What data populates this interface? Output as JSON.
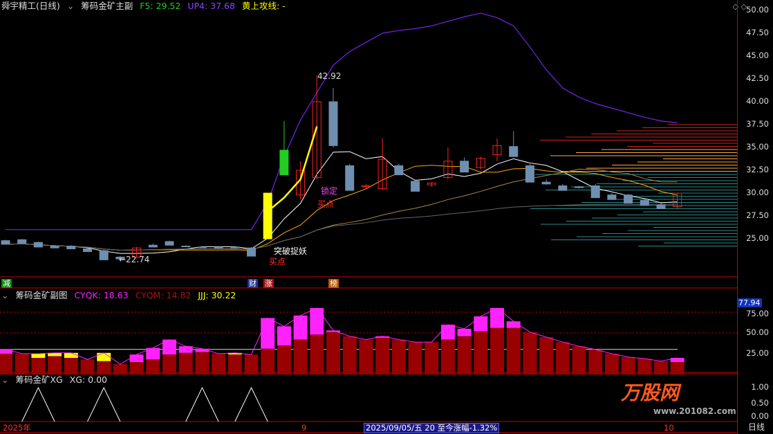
{
  "main_header": {
    "app": "舜宇精工(日线)",
    "indicator": "筹码金矿主副",
    "f5": "F5: 29.52",
    "up4": "UP4: 37.68",
    "huang": "黄上攻线: -"
  },
  "main_axis": [
    "50.00",
    "47.50",
    "45.00",
    "42.50",
    "40.00",
    "37.50",
    "35.00",
    "32.50",
    "30.00",
    "27.50",
    "25.00"
  ],
  "annotations": {
    "high": "42.92",
    "low": "←22.74",
    "breakout": "突破捉妖",
    "buy1": "买点",
    "buy2": "买点",
    "lock": "锁定"
  },
  "event_tags": [
    "减",
    "财",
    "涨",
    "榜"
  ],
  "sub_header": {
    "title": "筹码金矿副图",
    "cyqk": "CYQK: 18.63",
    "cyqm": "CYQM: 14.82",
    "jjj": "JJJ: 30.22"
  },
  "sub_axis": {
    "current": "77.94",
    "ticks": [
      "75.00",
      "50.00",
      "25.00"
    ]
  },
  "xg_header": {
    "title": "筹码金矿XG",
    "xg": "XG: 0.00"
  },
  "xg_axis": [
    "1.00",
    "0.50",
    "0.00"
  ],
  "bottom": {
    "year": "2025年",
    "month9": "9",
    "status": "2025/09/05/五 20 至今涨幅-1.32%",
    "month10": "10",
    "period": "日线"
  },
  "watermark": {
    "logo": "万股网",
    "url": "www.201082.com"
  },
  "colors": {
    "up": "#ff2020",
    "down": "#6f8fb0",
    "limit": "#ffff00",
    "green": "#22cc22",
    "cyqk": "#ff22ff",
    "cyqm": "#990000",
    "jjj": "#ffff00",
    "grid": "#cc0000"
  },
  "candles": [
    [
      24.8,
      24.9,
      24.4,
      24.4
    ],
    [
      24.9,
      25.0,
      24.5,
      24.5
    ],
    [
      24.6,
      24.7,
      24.1,
      24.1
    ],
    [
      24.2,
      24.3,
      24.0,
      24.0
    ],
    [
      24.2,
      24.3,
      23.9,
      23.9
    ],
    [
      23.9,
      24.0,
      23.6,
      23.6
    ],
    [
      23.7,
      23.8,
      22.7,
      22.7
    ],
    [
      23.0,
      23.1,
      22.74,
      22.8
    ],
    [
      23.0,
      24.1,
      22.9,
      24.0
    ],
    [
      24.3,
      24.5,
      24.1,
      24.1
    ],
    [
      24.7,
      24.8,
      24.3,
      24.3
    ],
    [
      24.2,
      24.3,
      24.1,
      24.2
    ],
    [
      24.1,
      24.2,
      24.0,
      24.1
    ],
    [
      24.1,
      24.2,
      23.9,
      24.0
    ],
    [
      24.1,
      24.2,
      24.0,
      24.1
    ],
    [
      24.0,
      24.1,
      23.1,
      23.1
    ],
    [
      25.0,
      30.0,
      25.0,
      30.0
    ],
    [
      32.0,
      37.9,
      32.0,
      34.7
    ],
    [
      29.8,
      33.5,
      29.3,
      32.5
    ],
    [
      31.7,
      42.92,
      31.5,
      40.0
    ],
    [
      40.0,
      41.5,
      35.0,
      35.2
    ],
    [
      33.0,
      33.2,
      30.3,
      30.3
    ],
    [
      30.7,
      31.0,
      30.5,
      30.8
    ],
    [
      30.5,
      36.0,
      30.3,
      33.7
    ],
    [
      33.0,
      33.2,
      32.0,
      32.0
    ],
    [
      31.3,
      31.5,
      30.2,
      30.2
    ],
    [
      30.9,
      31.2,
      30.7,
      31.1
    ],
    [
      31.7,
      35.0,
      31.5,
      33.5
    ],
    [
      33.5,
      33.9,
      32.3,
      32.3
    ],
    [
      32.8,
      34.0,
      32.6,
      33.8
    ],
    [
      34.2,
      36.0,
      33.5,
      35.2
    ],
    [
      35.1,
      36.8,
      34.0,
      34.0
    ],
    [
      33.0,
      33.2,
      31.2,
      31.2
    ],
    [
      31.2,
      31.5,
      30.9,
      31.0
    ],
    [
      30.8,
      31.0,
      30.3,
      30.3
    ],
    [
      30.7,
      30.8,
      30.5,
      30.6
    ],
    [
      30.8,
      31.0,
      29.5,
      29.5
    ],
    [
      29.8,
      30.0,
      29.3,
      29.3
    ],
    [
      29.8,
      29.9,
      28.9,
      28.9
    ],
    [
      29.2,
      29.3,
      28.7,
      28.7
    ],
    [
      28.7,
      28.9,
      28.3,
      28.3
    ],
    [
      28.5,
      30.0,
      28.3,
      30.0
    ]
  ],
  "sub_bars": {
    "cyqm": [
      25,
      25,
      20,
      22,
      20,
      18,
      16,
      12.5,
      15,
      18,
      24,
      26,
      27,
      25,
      24,
      24,
      31,
      35,
      42,
      48,
      51,
      46,
      42,
      44,
      42,
      39,
      39,
      42,
      46,
      52,
      56,
      56,
      51,
      45,
      39,
      34,
      30,
      25,
      21,
      19,
      16,
      15
    ],
    "top": [
      30.5,
      25,
      25,
      26,
      26,
      18,
      26,
      12.5,
      24,
      32,
      42,
      34,
      31,
      25,
      26,
      24,
      68,
      58,
      71,
      86,
      53,
      46,
      42,
      46,
      42,
      39,
      39,
      60,
      55,
      70,
      80,
      64,
      51,
      45,
      39,
      34,
      30,
      25,
      21,
      19,
      16,
      20
    ],
    "top_kind": [
      "k",
      "n",
      "y",
      "y",
      "y",
      "n",
      "y",
      "n",
      "k",
      "k",
      "k",
      "k",
      "k",
      "n",
      "y",
      "n",
      "k",
      "k",
      "k",
      "k",
      "k",
      "n",
      "n",
      "k",
      "n",
      "n",
      "n",
      "k",
      "k",
      "k",
      "k",
      "k",
      "n",
      "n",
      "n",
      "n",
      "n",
      "n",
      "n",
      "n",
      "n",
      "k"
    ]
  },
  "xg_peaks": [
    2,
    6,
    12,
    15
  ]
}
